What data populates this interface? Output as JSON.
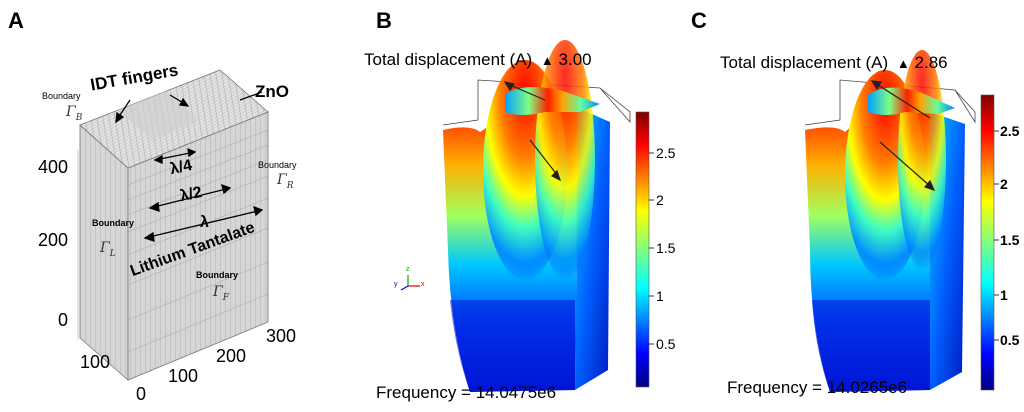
{
  "panels": {
    "a": {
      "letter": "A",
      "labels": {
        "idt_fingers": "IDT fingers",
        "zno": "ZnO",
        "lambda_quarter": "λ/4",
        "lambda_half": "λ/2",
        "lambda": "λ",
        "lithium_tantalate": "Lithium Tantalate",
        "boundary_word": "Boundary",
        "gamma_b": "Γ",
        "gamma_b_sub": "B",
        "gamma_r": "Γ",
        "gamma_r_sub": "R",
        "gamma_l": "Γ",
        "gamma_l_sub": "L",
        "gamma_f": "Γ",
        "gamma_f_sub": "F"
      },
      "z_ticks": [
        "400",
        "200",
        "0"
      ],
      "y_ticks": [
        "300"
      ],
      "x_ticks_left": [
        "100"
      ],
      "x_ticks_front": [
        "0",
        "100",
        "200"
      ]
    },
    "b": {
      "letter": "B",
      "title": "Total displacement (A)",
      "max_value": "3.00",
      "frequency": "Frequency = 14.0475e6",
      "colorbar_ticks": [
        "2.5",
        "2",
        "1.5",
        "1",
        "0.5"
      ],
      "axes_triad": {
        "x": "x",
        "y": "y",
        "z": "z"
      }
    },
    "c": {
      "letter": "C",
      "title": "Total displacement (A)",
      "max_value": "2.86",
      "frequency": "Frequency = 14.0265e6",
      "colorbar_ticks": [
        "2.5",
        "2",
        "1.5",
        "1",
        "0.5"
      ]
    }
  },
  "max_marker_glyph": "▲",
  "colors": {
    "mesh_face": "#d8d8d8",
    "mesh_top": "#e4e4e4",
    "mesh_side": "#c4c4c4",
    "jet_low": "#00008f",
    "jet_high": "#8f0000"
  }
}
